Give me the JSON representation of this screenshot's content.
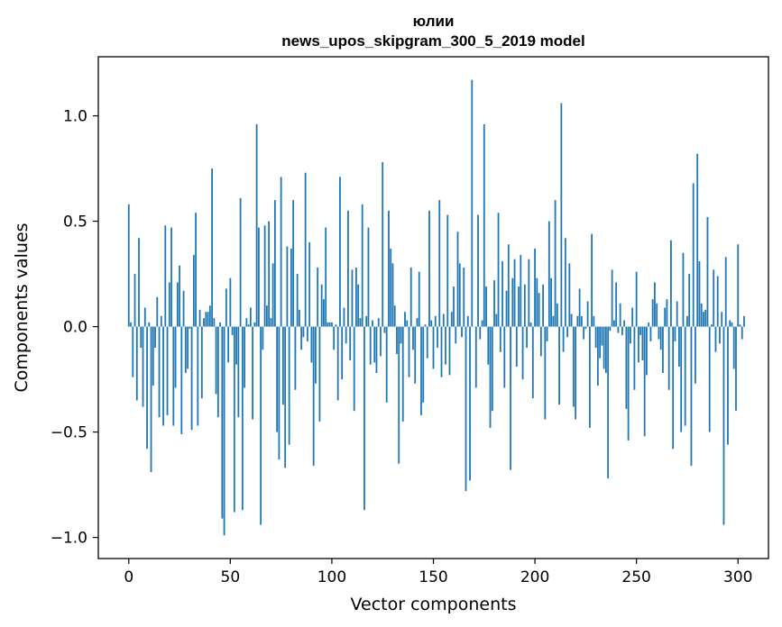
{
  "chart_data": {
    "type": "bar",
    "title": "юлии",
    "subtitle": "news_upos_skipgram_300_5_2019 model",
    "xlabel": "Vector components",
    "ylabel": "Components values",
    "xlim": [
      -15,
      315
    ],
    "ylim": [
      -1.1,
      1.28
    ],
    "xticks": [
      0,
      50,
      100,
      150,
      200,
      250,
      300
    ],
    "xtick_labels": [
      "0",
      "50",
      "100",
      "150",
      "200",
      "250",
      "300"
    ],
    "yticks": [
      -1.0,
      -0.5,
      0.0,
      0.5,
      1.0
    ],
    "ytick_labels": [
      "−1.0",
      "−0.5",
      "0.0",
      "0.5",
      "1.0"
    ],
    "grid": false,
    "bar_color": "#1f77b4",
    "x_start": 0,
    "values": [
      0.58,
      0.02,
      -0.24,
      0.25,
      -0.35,
      0.42,
      -0.1,
      -0.38,
      0.09,
      -0.58,
      0.02,
      -0.69,
      -0.28,
      -0.1,
      0.14,
      -0.43,
      0.05,
      -0.47,
      0.48,
      -0.42,
      0.21,
      0.47,
      -0.47,
      -0.29,
      0.21,
      0.29,
      -0.51,
      0.17,
      -0.22,
      -0.2,
      -0.01,
      -0.49,
      0.34,
      0.54,
      -0.47,
      0.08,
      -0.34,
      0.04,
      0.07,
      0.07,
      0.1,
      0.75,
      0.04,
      -0.32,
      -0.43,
      0.02,
      -0.91,
      -0.99,
      0.18,
      -0.17,
      0.23,
      -0.04,
      -0.88,
      -0.18,
      -0.43,
      0.61,
      -0.87,
      -0.29,
      0.04,
      0.01,
      0.09,
      -0.44,
      0.02,
      0.96,
      0.47,
      -0.94,
      -0.11,
      0.48,
      0.1,
      0.5,
      0.04,
      0.3,
      0.6,
      -0.5,
      -0.63,
      0.71,
      -0.37,
      -0.67,
      0.38,
      -0.56,
      0.37,
      0.6,
      -0.3,
      0.25,
      0.08,
      -0.11,
      -0.05,
      0.73,
      -0.07,
      0.4,
      -0.17,
      -0.66,
      -0.27,
      0.28,
      -0.45,
      0.2,
      0.13,
      0.47,
      0.02,
      0.02,
      0.02,
      -0.11,
      0.01,
      -0.35,
      0.71,
      -0.25,
      0.09,
      -0.08,
      0.55,
      -0.16,
      0.27,
      -0.4,
      0.28,
      0.2,
      0.04,
      0.58,
      -0.87,
      0.05,
      0.47,
      -0.18,
      0.03,
      -0.17,
      -0.22,
      0.04,
      -0.14,
      0.78,
      -0.03,
      -0.36,
      0.55,
      0.37,
      0.3,
      0.1,
      -0.13,
      -0.65,
      -0.08,
      -0.45,
      0.07,
      0.03,
      -0.24,
      0.28,
      -0.11,
      -0.27,
      0.04,
      0.26,
      -0.42,
      -0.36,
      0.01,
      -0.15,
      0.55,
      0.03,
      -0.2,
      0.05,
      -0.1,
      0.6,
      -0.24,
      0.06,
      -0.18,
      0.53,
      -0.23,
      0.07,
      0.19,
      -0.08,
      0.45,
      0.3,
      -0.05,
      0.28,
      -0.78,
      0.05,
      -0.73,
      1.17,
      0.0,
      -0.29,
      0.53,
      -0.06,
      0.03,
      0.96,
      0.19,
      -0.18,
      -0.48,
      -0.4,
      0.22,
      0.06,
      0.54,
      -0.12,
      0.31,
      -0.29,
      0.17,
      0.39,
      -0.68,
      0.23,
      0.32,
      -0.19,
      0.19,
      0.34,
      -0.25,
      0.2,
      -0.1,
      0.32,
      0.02,
      -0.34,
      0.37,
      0.23,
      0.16,
      -0.14,
      0.2,
      -0.44,
      -0.07,
      0.5,
      0.23,
      0.05,
      0.6,
      0.11,
      -0.37,
      1.06,
      -0.12,
      0.42,
      -0.05,
      0.3,
      0.06,
      -0.38,
      -0.44,
      0.05,
      0.18,
      0.05,
      -0.06,
      -0.01,
      0.12,
      -0.48,
      0.44,
      0.05,
      -0.1,
      -0.28,
      -0.15,
      -0.09,
      -0.2,
      -0.22,
      -0.72,
      -0.02,
      0.27,
      0.03,
      0.21,
      -0.03,
      0.11,
      -0.04,
      0.03,
      -0.39,
      -0.54,
      -0.08,
      0.09,
      -0.3,
      0.26,
      -0.17,
      -0.04,
      -0.16,
      -0.52,
      -0.23,
      0.02,
      -0.07,
      0.13,
      0.21,
      0.11,
      -0.06,
      -0.11,
      -0.22,
      0.09,
      0.13,
      -0.3,
      0.41,
      -0.58,
      -0.07,
      0.12,
      -0.19,
      -0.5,
      0.35,
      -0.47,
      0.05,
      0.25,
      -0.66,
      0.68,
      -0.27,
      0.82,
      0.31,
      0.11,
      0.07,
      0.08,
      0.52,
      -0.5,
      0.01,
      0.27,
      -0.12,
      0.24,
      -0.08,
      0.07,
      -0.94,
      0.33,
      -0.56,
      0.03,
      0.02,
      -0.2,
      -0.4,
      0.39,
      0.01,
      -0.06,
      0.05
    ]
  }
}
